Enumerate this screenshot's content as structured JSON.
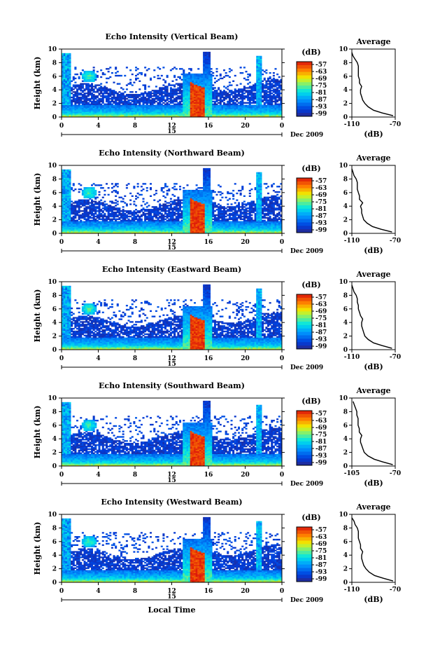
{
  "figure": {
    "xlabel": "Local Time",
    "date_label": "Dec 2009",
    "day_label": "15",
    "colorbar_unit": "(dB)",
    "avg_title": "Average",
    "avg_xlabel": "(dB)"
  },
  "chart_data": [
    {
      "type": "heatmap",
      "title": "Echo Intensity (Vertical Beam)",
      "ylabel": "Height (km)",
      "xlabel": "Local Time",
      "x_ticks": [
        "0",
        "4",
        "8",
        "12",
        "16",
        "20",
        "0"
      ],
      "xlim": [
        0,
        24
      ],
      "y_ticks": [
        "0",
        "2",
        "4",
        "6",
        "8",
        "10"
      ],
      "ylim": [
        0,
        10
      ],
      "colorbar_ticks": [
        "-57",
        "-63",
        "-69",
        "-75",
        "-81",
        "-87",
        "-93",
        "-99"
      ],
      "average_profile": {
        "xlim": [
          -110,
          -70
        ],
        "x_ticks": [
          "-110",
          "-70"
        ],
        "y_ticks": [
          "0",
          "2",
          "4",
          "6",
          "8",
          "10"
        ],
        "height": [
          0.2,
          0.6,
          1,
          1.5,
          2,
          2.5,
          3,
          3.5,
          4,
          4.5,
          5,
          5.5,
          6,
          6.5,
          7,
          7.5,
          8,
          8.5,
          9,
          9.5
        ],
        "db": [
          -72,
          -82,
          -90,
          -95,
          -98,
          -100,
          -101,
          -102,
          -102,
          -101,
          -103,
          -103,
          -104,
          -104,
          -104,
          -104,
          -105,
          -107,
          -109,
          -110
        ]
      }
    },
    {
      "type": "heatmap",
      "title": "Echo Intensity (Northward Beam)",
      "ylabel": "Height (km)",
      "xlabel": "Local Time",
      "x_ticks": [
        "0",
        "4",
        "8",
        "12",
        "16",
        "20",
        "0"
      ],
      "xlim": [
        0,
        24
      ],
      "y_ticks": [
        "0",
        "2",
        "4",
        "6",
        "8",
        "10"
      ],
      "ylim": [
        0,
        10
      ],
      "colorbar_ticks": [
        "-57",
        "-63",
        "-69",
        "-75",
        "-81",
        "-87",
        "-93",
        "-99"
      ],
      "average_profile": {
        "xlim": [
          -110,
          -70
        ],
        "x_ticks": [
          "-110",
          "-70"
        ],
        "y_ticks": [
          "0",
          "2",
          "4",
          "6",
          "8",
          "10"
        ],
        "height": [
          0.2,
          0.6,
          1,
          1.5,
          2,
          2.5,
          3,
          3.5,
          4,
          4.5,
          5,
          5.5,
          6,
          6.5,
          7,
          7.5,
          8,
          8.5,
          9,
          9.5
        ],
        "db": [
          -73,
          -83,
          -91,
          -96,
          -99,
          -100,
          -101,
          -101,
          -102,
          -100,
          -103,
          -103,
          -104,
          -105,
          -105,
          -105,
          -106,
          -108,
          -109,
          -110
        ]
      }
    },
    {
      "type": "heatmap",
      "title": "Echo Intensity (Eastward Beam)",
      "ylabel": "Height (km)",
      "xlabel": "Local Time",
      "x_ticks": [
        "0",
        "4",
        "8",
        "12",
        "16",
        "20",
        "0"
      ],
      "xlim": [
        0,
        24
      ],
      "y_ticks": [
        "0",
        "2",
        "4",
        "6",
        "8",
        "10"
      ],
      "ylim": [
        0,
        10
      ],
      "colorbar_ticks": [
        "-57",
        "-63",
        "-69",
        "-75",
        "-81",
        "-87",
        "-93",
        "-99"
      ],
      "average_profile": {
        "xlim": [
          -110,
          -70
        ],
        "x_ticks": [
          "-110",
          "-70"
        ],
        "y_ticks": [
          "0",
          "2",
          "4",
          "6",
          "8",
          "10"
        ],
        "height": [
          0.2,
          0.6,
          1,
          1.5,
          2,
          2.5,
          3,
          3.5,
          4,
          4.5,
          5,
          5.5,
          6,
          6.5,
          7,
          7.5,
          8,
          8.5,
          9,
          9.5
        ],
        "db": [
          -73,
          -82,
          -90,
          -95,
          -98,
          -99,
          -100,
          -101,
          -101,
          -100,
          -102,
          -103,
          -104,
          -104,
          -105,
          -105,
          -106,
          -108,
          -109,
          -110
        ]
      }
    },
    {
      "type": "heatmap",
      "title": "Echo Intensity (Southward Beam)",
      "ylabel": "Height (km)",
      "xlabel": "Local Time",
      "x_ticks": [
        "0",
        "4",
        "8",
        "12",
        "16",
        "20",
        "0"
      ],
      "xlim": [
        0,
        24
      ],
      "y_ticks": [
        "0",
        "2",
        "4",
        "6",
        "8",
        "10"
      ],
      "ylim": [
        0,
        10
      ],
      "colorbar_ticks": [
        "-57",
        "-63",
        "-69",
        "-75",
        "-81",
        "-87",
        "-93",
        "-99"
      ],
      "average_profile": {
        "xlim": [
          -105,
          -70
        ],
        "x_ticks": [
          "-105",
          "-70"
        ],
        "y_ticks": [
          "0",
          "2",
          "4",
          "6",
          "8",
          "10"
        ],
        "height": [
          0.2,
          0.6,
          1,
          1.5,
          2,
          2.5,
          3,
          3.5,
          4,
          4.5,
          5,
          5.5,
          6,
          6.5,
          7,
          7.5,
          8,
          8.5,
          9,
          9.5
        ],
        "db": [
          -72,
          -80,
          -87,
          -92,
          -95,
          -96,
          -97,
          -98,
          -98,
          -97,
          -99,
          -99,
          -100,
          -100,
          -100,
          -101,
          -101,
          -102,
          -103,
          -104
        ]
      }
    },
    {
      "type": "heatmap",
      "title": "Echo Intensity (Westward Beam)",
      "ylabel": "Height (km)",
      "xlabel": "Local Time",
      "x_ticks": [
        "0",
        "4",
        "8",
        "12",
        "16",
        "20",
        "0"
      ],
      "xlim": [
        0,
        24
      ],
      "y_ticks": [
        "0",
        "2",
        "4",
        "6",
        "8",
        "10"
      ],
      "ylim": [
        0,
        10
      ],
      "colorbar_ticks": [
        "-57",
        "-63",
        "-69",
        "-75",
        "-81",
        "-87",
        "-93",
        "-99"
      ],
      "average_profile": {
        "xlim": [
          -110,
          -70
        ],
        "x_ticks": [
          "-110",
          "-70"
        ],
        "y_ticks": [
          "0",
          "2",
          "4",
          "6",
          "8",
          "10"
        ],
        "height": [
          0.2,
          0.6,
          1,
          1.5,
          2,
          2.5,
          3,
          3.5,
          4,
          4.5,
          5,
          5.5,
          6,
          6.5,
          7,
          7.5,
          8,
          8.5,
          9,
          9.5
        ],
        "db": [
          -72,
          -81,
          -89,
          -94,
          -97,
          -99,
          -100,
          -101,
          -101,
          -100,
          -102,
          -102,
          -103,
          -104,
          -104,
          -104,
          -105,
          -107,
          -108,
          -110
        ]
      }
    }
  ]
}
